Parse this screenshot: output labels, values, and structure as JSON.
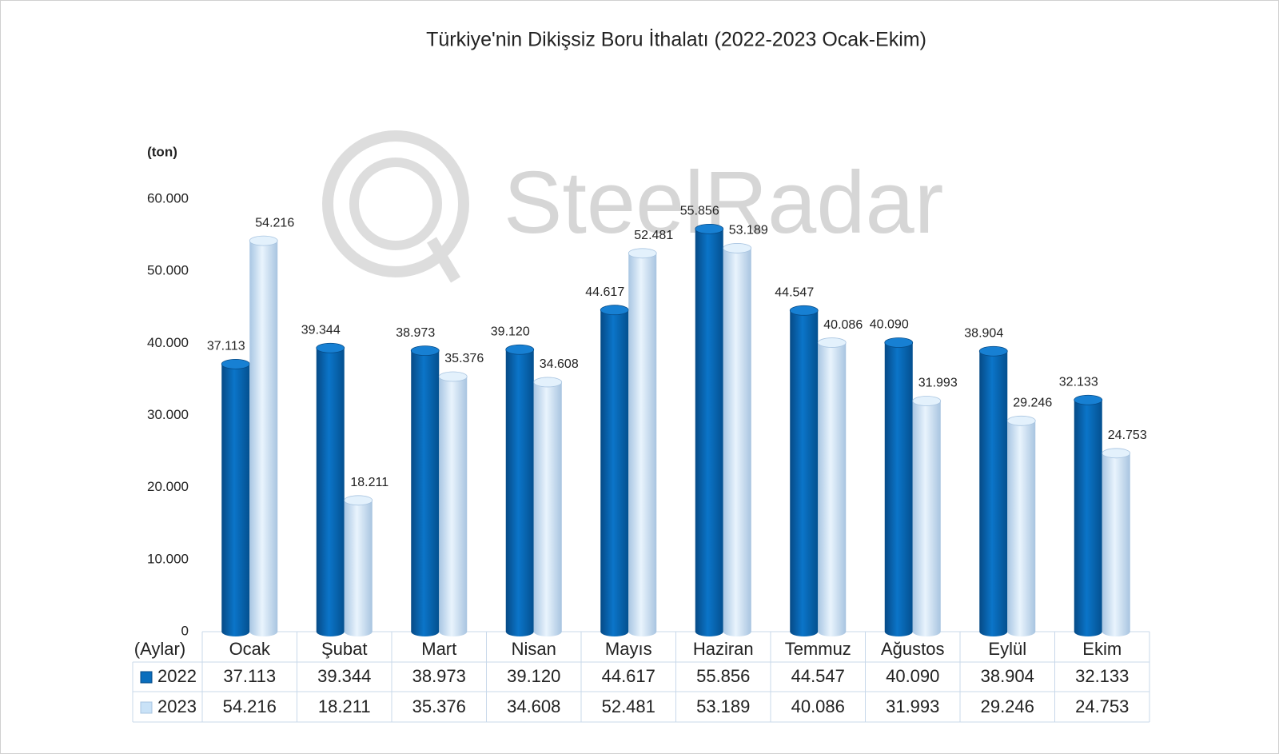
{
  "chart_data": {
    "type": "bar",
    "title": "Türkiye'nin Dikişsiz Boru İthalatı (2022-2023 Ocak-Ekim)",
    "y_axis_label": "(ton)",
    "x_axis_label": "(Aylar)",
    "watermark": "SteelRadar",
    "categories": [
      "Ocak",
      "Şubat",
      "Mart",
      "Nisan",
      "Mayıs",
      "Haziran",
      "Temmuz",
      "Ağustos",
      "Eylül",
      "Ekim"
    ],
    "series": [
      {
        "name": "2022",
        "color": "#0a6ebd",
        "values": [
          37113,
          39344,
          38973,
          39120,
          44617,
          55856,
          44547,
          40090,
          38904,
          32133
        ],
        "value_labels": [
          "37.113",
          "39.344",
          "38.973",
          "39.120",
          "44.617",
          "55.856",
          "44.547",
          "40.090",
          "38.904",
          "32.133"
        ]
      },
      {
        "name": "2023",
        "color": "#c9e2f7",
        "values": [
          54216,
          18211,
          35376,
          34608,
          52481,
          53189,
          40086,
          31993,
          29246,
          24753
        ],
        "value_labels": [
          "54.216",
          "18.211",
          "35.376",
          "34.608",
          "52.481",
          "53.189",
          "40.086",
          "31.993",
          "29.246",
          "24.753"
        ]
      }
    ],
    "ylim": [
      0,
      60000
    ],
    "yticks": [
      0,
      {
        "value": 10000,
        "label": "10.000"
      },
      {
        "value": 20000,
        "label": "20.000"
      },
      {
        "value": 30000,
        "label": "30.000"
      },
      {
        "value": 40000,
        "label": "40.000"
      },
      {
        "value": 50000,
        "label": "50.000"
      },
      {
        "value": 60000,
        "label": "60.000"
      }
    ],
    "grid": false
  }
}
